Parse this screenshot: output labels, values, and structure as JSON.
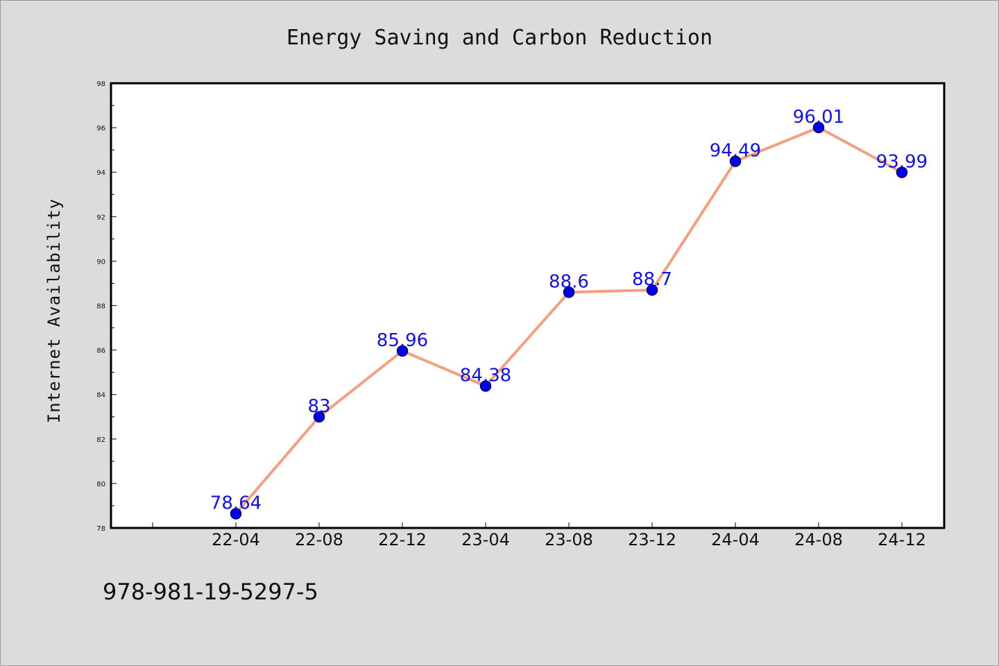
{
  "chart_data": {
    "type": "line",
    "title": "Energy Saving and Carbon Reduction",
    "ylabel": "Internet Availability",
    "xlabel": "",
    "categories": [
      "22-04",
      "22-08",
      "22-12",
      "23-04",
      "23-08",
      "23-12",
      "24-04",
      "24-08",
      "24-12"
    ],
    "values": [
      78.64,
      83,
      85.96,
      84.38,
      88.6,
      88.7,
      94.49,
      96.01,
      93.99
    ],
    "data_labels": [
      "78.64",
      "83",
      "85.96",
      "84.38",
      "88.6",
      "88.7",
      "94.49",
      "96.01",
      "93.99"
    ],
    "ylim": [
      78,
      98
    ],
    "yticks": [
      78,
      80,
      82,
      84,
      86,
      88,
      90,
      92,
      94,
      96,
      98
    ],
    "grid": false,
    "colors": {
      "line": "#f4a07f",
      "marker": "#0000ee",
      "marker_edge": "#000066",
      "data_label": "#1010f0",
      "background": "#dcdcdc",
      "plot_background": "#ffffff"
    }
  },
  "footer_text": "978-981-19-5297-5"
}
